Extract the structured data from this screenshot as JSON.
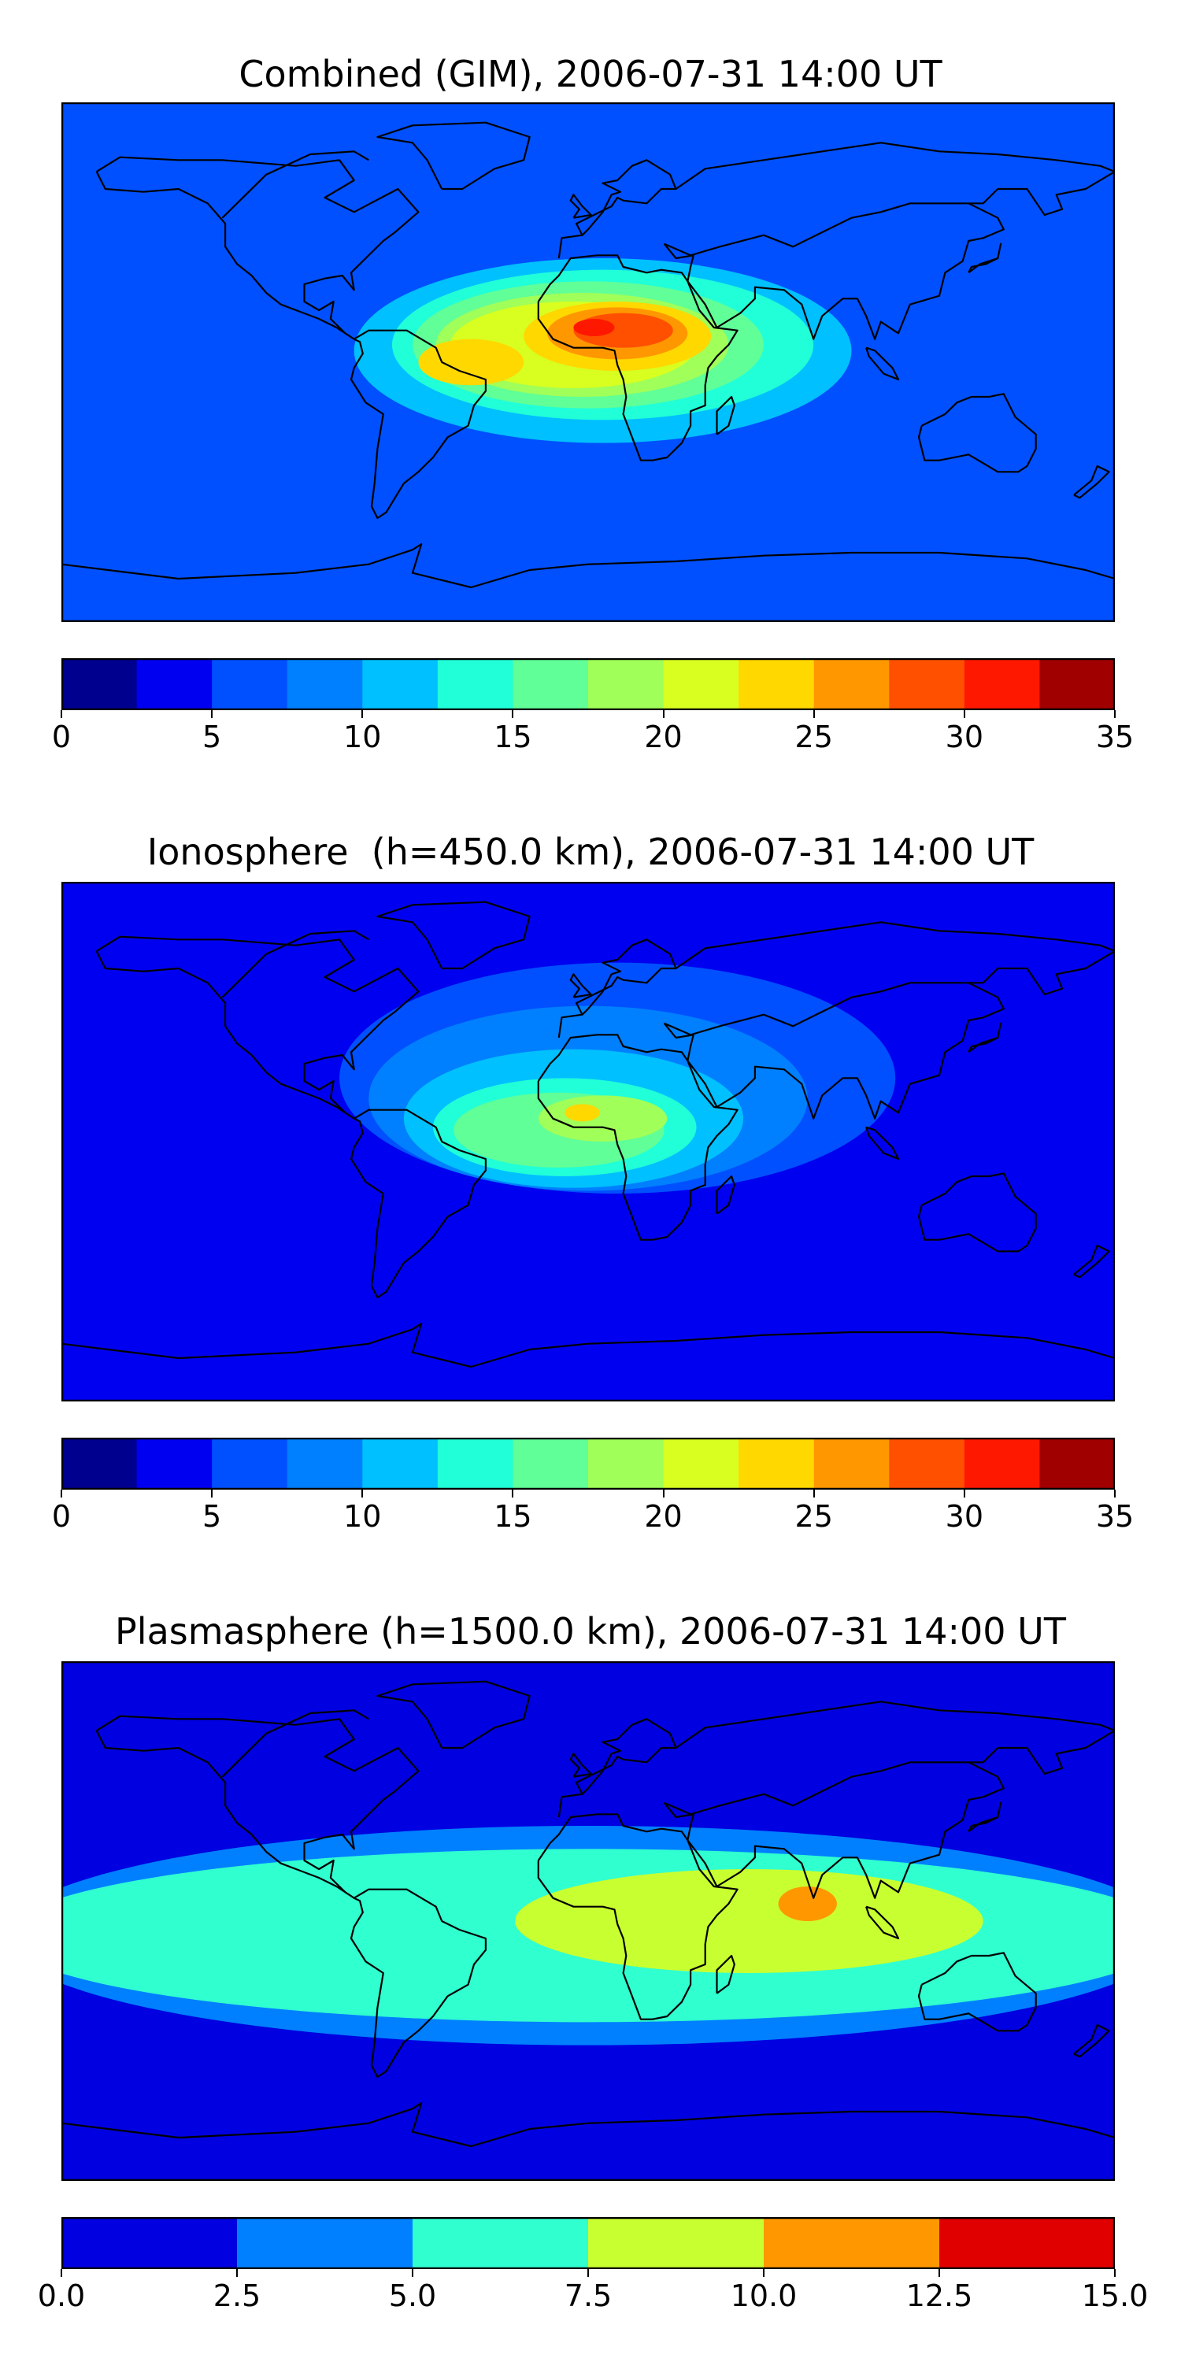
{
  "chart_data": [
    {
      "type": "heatmap",
      "title": "Combined (GIM), 2006-07-31 14:00 UT",
      "colorbar": {
        "ticks": [
          "0",
          "5",
          "10",
          "15",
          "20",
          "25",
          "30",
          "35"
        ],
        "range": [
          0,
          35
        ],
        "levels": [
          0,
          2.5,
          5,
          7.5,
          10,
          12.5,
          15,
          17.5,
          20,
          22.5,
          25,
          27.5,
          30,
          32.5,
          35
        ],
        "colors": [
          "#00008f",
          "#0000f0",
          "#0050ff",
          "#0080ff",
          "#00c0ff",
          "#20ffd8",
          "#60ff98",
          "#a0ff58",
          "#d8ff20",
          "#ffd800",
          "#ff9800",
          "#ff5000",
          "#ff1800",
          "#a00000"
        ]
      },
      "grid": false,
      "background_level_index": 2,
      "features": [
        {
          "lon": 5,
          "lat": 4,
          "rx": 85,
          "ry": 32,
          "level": 4
        },
        {
          "lon": 5,
          "lat": 6,
          "rx": 72,
          "ry": 26,
          "level": 5
        },
        {
          "lon": 0,
          "lat": 6,
          "rx": 60,
          "ry": 22,
          "level": 6
        },
        {
          "lon": -2,
          "lat": 6,
          "rx": 50,
          "ry": 18,
          "level": 7
        },
        {
          "lon": -5,
          "lat": 6,
          "rx": 42,
          "ry": 15,
          "level": 8
        },
        {
          "lon": -40,
          "lat": 0,
          "rx": 18,
          "ry": 8,
          "level": 9
        },
        {
          "lon": 10,
          "lat": 9,
          "rx": 32,
          "ry": 12,
          "level": 9
        },
        {
          "lon": 10,
          "lat": 10,
          "rx": 24,
          "ry": 9,
          "level": 10
        },
        {
          "lon": 12,
          "lat": 11,
          "rx": 17,
          "ry": 6,
          "level": 11
        },
        {
          "lon": 2,
          "lat": 12,
          "rx": 7,
          "ry": 3,
          "level": 12
        }
      ]
    },
    {
      "type": "heatmap",
      "title": "Ionosphere  (h=450.0 km), 2006-07-31 14:00 UT",
      "colorbar": {
        "ticks": [
          "0",
          "5",
          "10",
          "15",
          "20",
          "25",
          "30",
          "35"
        ],
        "range": [
          0,
          35
        ],
        "levels": [
          0,
          2.5,
          5,
          7.5,
          10,
          12.5,
          15,
          17.5,
          20,
          22.5,
          25,
          27.5,
          30,
          32.5,
          35
        ],
        "colors": [
          "#00008f",
          "#0000f0",
          "#0050ff",
          "#0080ff",
          "#00c0ff",
          "#20ffd8",
          "#60ff98",
          "#a0ff58",
          "#d8ff20",
          "#ffd800",
          "#ff9800",
          "#ff5000",
          "#ff1800",
          "#a00000"
        ]
      },
      "grid": false,
      "background_level_index": 1,
      "features": [
        {
          "lon": 10,
          "lat": 22,
          "rx": 95,
          "ry": 40,
          "level": 2
        },
        {
          "lon": 0,
          "lat": 15,
          "rx": 75,
          "ry": 32,
          "level": 3
        },
        {
          "lon": -5,
          "lat": 8,
          "rx": 58,
          "ry": 24,
          "level": 4
        },
        {
          "lon": -8,
          "lat": 5,
          "rx": 45,
          "ry": 17,
          "level": 5
        },
        {
          "lon": -10,
          "lat": 4,
          "rx": 36,
          "ry": 13,
          "level": 6
        },
        {
          "lon": 5,
          "lat": 8,
          "rx": 22,
          "ry": 8,
          "level": 7
        },
        {
          "lon": -2,
          "lat": 10,
          "rx": 6,
          "ry": 3,
          "level": 9
        }
      ]
    },
    {
      "type": "heatmap",
      "title": "Plasmasphere (h=1500.0 km), 2006-07-31 14:00 UT",
      "colorbar": {
        "ticks": [
          "0.0",
          "2.5",
          "5.0",
          "7.5",
          "10.0",
          "12.5",
          "15.0"
        ],
        "range": [
          0,
          15
        ],
        "levels": [
          0,
          2.5,
          5,
          7.5,
          10,
          12.5,
          15
        ],
        "colors": [
          "#0000e0",
          "#0080ff",
          "#30ffd0",
          "#c8ff30",
          "#ff9800",
          "#e00000"
        ]
      },
      "grid": false,
      "background_level_index": 0,
      "features": [
        {
          "lon": 0,
          "lat": -5,
          "rx": 200,
          "ry": 38,
          "level": 1
        },
        {
          "lon": 0,
          "lat": -5,
          "rx": 200,
          "ry": 30,
          "level": 2
        },
        {
          "lon": 55,
          "lat": 0,
          "rx": 80,
          "ry": 18,
          "level": 3
        },
        {
          "lon": 75,
          "lat": 6,
          "rx": 10,
          "ry": 6,
          "level": 4
        }
      ]
    }
  ]
}
